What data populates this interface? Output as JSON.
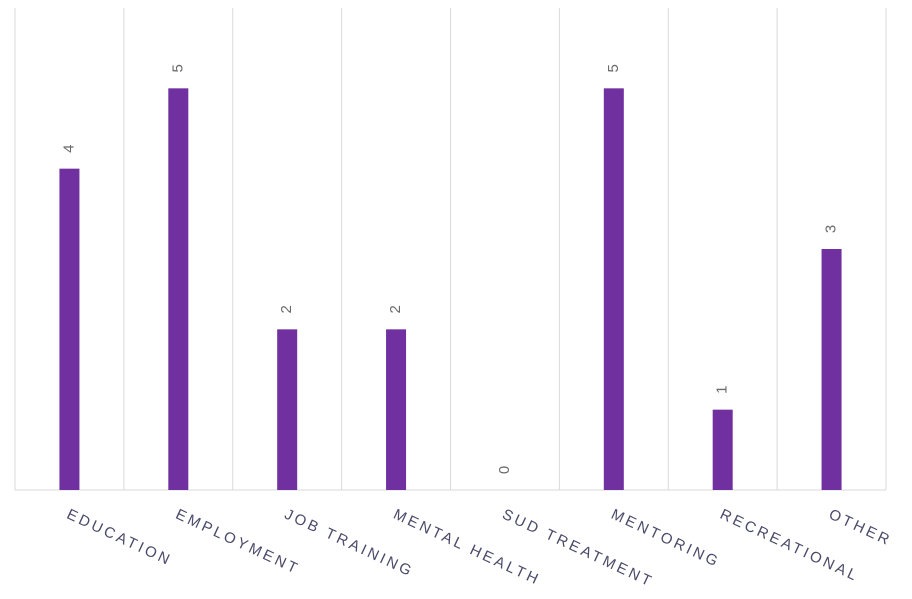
{
  "chart_data": {
    "type": "bar",
    "categories": [
      "EDUCATION",
      "EMPLOYMENT",
      "JOB TRAINING",
      "MENTAL HEALTH",
      "SUD TREATMENT",
      "MENTORING",
      "RECREATIONAL",
      "OTHER"
    ],
    "values": [
      4,
      5,
      2,
      2,
      0,
      5,
      1,
      3
    ],
    "color": "#7030a0",
    "ylim": [
      0,
      6
    ]
  }
}
